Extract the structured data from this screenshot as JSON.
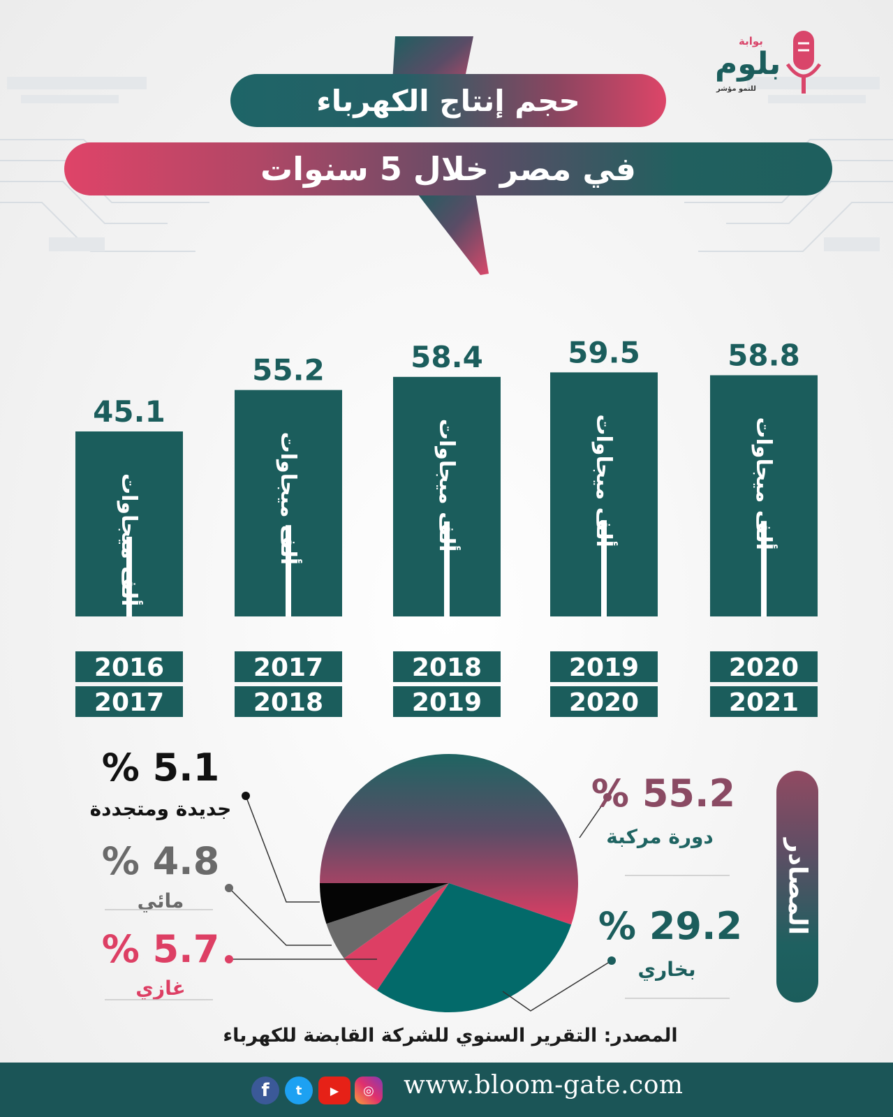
{
  "header": {
    "title_line1": "حجم إنتاج الكهرباء",
    "title_line2": "في مصر خلال 5 سنوات"
  },
  "logo": {
    "small_text": "بوابة",
    "brand": "بلوم",
    "tagline": "للنمو مؤشر"
  },
  "colors": {
    "teal": "#1b5d5c",
    "crimson": "#dd3f64",
    "gray": "#6a6a6a",
    "black": "#050505"
  },
  "chart_data": [
    {
      "type": "bar",
      "categories": [
        [
          "2016",
          "2017"
        ],
        [
          "2017",
          "2018"
        ],
        [
          "2018",
          "2019"
        ],
        [
          "2019",
          "2020"
        ],
        [
          "2020",
          "2021"
        ]
      ],
      "values": [
        45.1,
        55.2,
        58.4,
        59.5,
        58.8
      ],
      "value_labels": [
        "45.1",
        "55.2",
        "58.4",
        "59.5",
        "58.8"
      ],
      "bar_label": "ألف ميجاوات",
      "bar_color": "#1b5d5c"
    },
    {
      "type": "pie",
      "title": "المصادر",
      "slices": [
        {
          "name": "دورة مركبة",
          "value": 55.2,
          "label": "% 55.2",
          "color": "#1f6462"
        },
        {
          "name": "بخاري",
          "value": 29.2,
          "label": "% 29.2",
          "color": "#036a6a"
        },
        {
          "name": "غازي",
          "value": 5.7,
          "label": "% 5.7",
          "color": "#dd3f64"
        },
        {
          "name": "مائي",
          "value": 4.8,
          "label": "% 4.8",
          "color": "#6a6a6a"
        },
        {
          "name": "جديدة ومتجددة",
          "value": 5.1,
          "label": "% 5.1",
          "color": "#050505"
        }
      ]
    }
  ],
  "source": "المصدر: التقرير السنوي للشركة القابضة للكهرباء",
  "footer": {
    "url": "www.bloom-gate.com",
    "social_icons": [
      "facebook-icon",
      "twitter-icon",
      "youtube-icon",
      "instagram-icon"
    ]
  }
}
